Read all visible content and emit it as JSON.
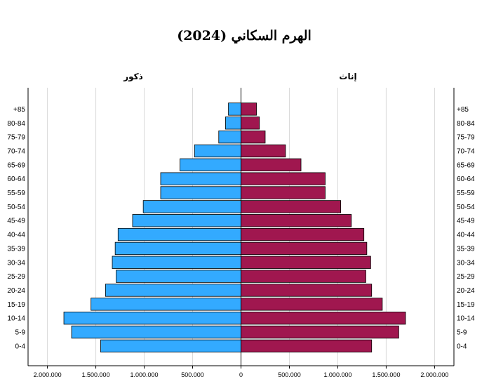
{
  "chart_data": {
    "type": "bar",
    "orientation": "horizontal-population-pyramid",
    "title": "الهرم السكاني (2024)",
    "left_label": "ذكور",
    "right_label": "إناث",
    "categories": [
      "0-4",
      "5-9",
      "10-14",
      "15-19",
      "20-24",
      "25-29",
      "30-34",
      "35-39",
      "40-44",
      "45-49",
      "50-54",
      "55-59",
      "60-64",
      "65-69",
      "70-74",
      "75-79",
      "80-84",
      "85+"
    ],
    "age_labels": [
      "0-4",
      "5-9",
      "10-14",
      "15-19",
      "20-24",
      "25-29",
      "30-34",
      "35-39",
      "40-44",
      "45-49",
      "50-54",
      "55-59",
      "60-64",
      "65-69",
      "70-74",
      "75-79",
      "80-84",
      "+85"
    ],
    "series": [
      {
        "name": "ذكور",
        "side": "left",
        "color": "#33AAFF",
        "values": [
          1450000,
          1750000,
          1830000,
          1550000,
          1400000,
          1290000,
          1330000,
          1300000,
          1270000,
          1120000,
          1010000,
          830000,
          830000,
          630000,
          480000,
          230000,
          160000,
          130000
        ]
      },
      {
        "name": "إناث",
        "side": "right",
        "color": "#A0174F",
        "values": [
          1350000,
          1630000,
          1700000,
          1460000,
          1350000,
          1290000,
          1340000,
          1300000,
          1270000,
          1140000,
          1030000,
          870000,
          870000,
          620000,
          460000,
          250000,
          190000,
          160000
        ]
      }
    ],
    "xlim": [
      -2200000,
      2200000
    ],
    "x_ticks": [
      -2000000,
      -1500000,
      -1000000,
      -500000,
      0,
      500000,
      1000000,
      1500000,
      2000000
    ],
    "x_tick_labels": [
      "2.000.000",
      "1.500.000",
      "1.000.000",
      "500.000",
      "0",
      "500.000",
      "1.000.000",
      "1.500.000",
      "2.000.000"
    ],
    "grid": true,
    "gridline_color": "#D9D9D9",
    "bar_border_color": "#000000"
  }
}
